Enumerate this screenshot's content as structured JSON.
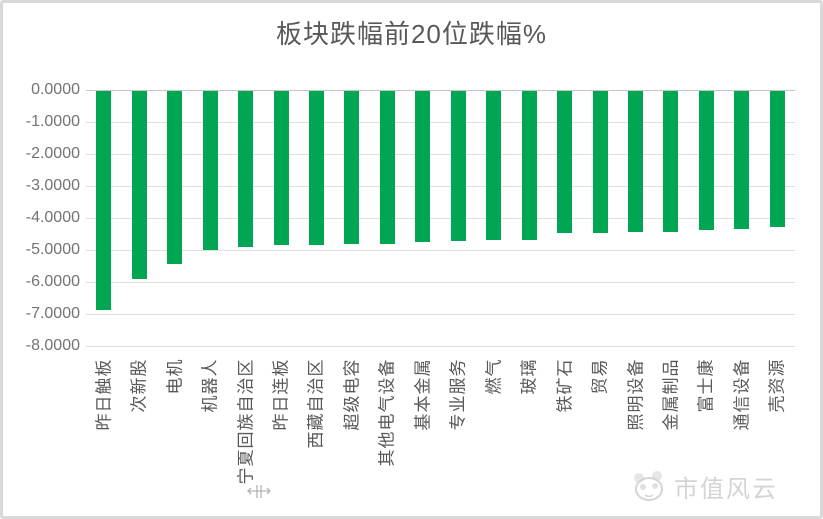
{
  "chart_data": {
    "type": "bar",
    "title": "板块跌幅前20位跌幅%",
    "categories": [
      "昨日触板",
      "次新股",
      "电机",
      "机器人",
      "宁夏回族自治区",
      "昨日连板",
      "西藏自治区",
      "超级电容",
      "其他电气设备",
      "基本金属",
      "专业服务",
      "燃气",
      "玻璃",
      "铁矿石",
      "贸易",
      "照明设备",
      "金属制品",
      "富士康",
      "通信设备",
      "壳资源"
    ],
    "values": [
      -6.85,
      -5.86,
      -5.42,
      -4.98,
      -4.86,
      -4.82,
      -4.8,
      -4.78,
      -4.78,
      -4.73,
      -4.68,
      -4.66,
      -4.66,
      -4.45,
      -4.43,
      -4.41,
      -4.4,
      -4.35,
      -4.3,
      -4.25
    ],
    "xlabel": "",
    "ylabel": "",
    "ylim": [
      -8,
      0
    ],
    "ytick_step": 1.0,
    "ytick_labels": [
      "0.0000",
      "-1.0000",
      "-2.0000",
      "-3.0000",
      "-4.0000",
      "-5.0000",
      "-6.0000",
      "-7.0000",
      "-8.0000"
    ],
    "x_label_rotation": -90,
    "grid": true,
    "legend": false,
    "bar_color": "#00a651"
  },
  "watermark": {
    "text": "市值风云",
    "logo_icon": "panda-logo"
  },
  "colors": {
    "background": "#ffffff",
    "frame_border": "#d9d9d9",
    "gridline": "#dedede",
    "axis_line": "#c4c4c4",
    "title_text": "#595959",
    "tick_text": "#737373",
    "bar": "#00a651",
    "watermark": "#d4d4d4"
  }
}
